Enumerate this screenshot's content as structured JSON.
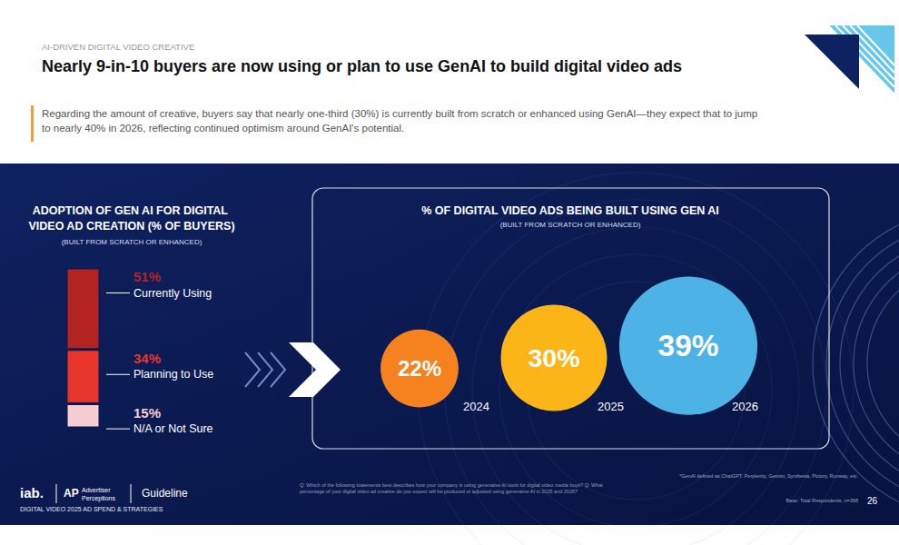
{
  "header": {
    "kicker": "AI-DRIVEN DIGITAL VIDEO CREATIVE",
    "title": "Nearly 9-in-10 buyers are now using or plan to use GenAI to build digital video ads",
    "subtitle": "Regarding the amount of creative, buyers say that nearly one-third (30%) is currently built from scratch or enhanced using GenAI—they expect that to jump to nearly 40% in 2026, reflecting continued optimism around GenAI's potential."
  },
  "chart_data": [
    {
      "type": "bar",
      "stacked": true,
      "title": "ADOPTION OF GEN AI FOR DIGITAL VIDEO AD CREATION (% OF BUYERS)",
      "subtitle": "(BUILT FROM SCRATCH OR ENHANCED)",
      "categories": [
        null
      ],
      "series": [
        {
          "name": "Currently Using",
          "color": "#b3231f",
          "values": [
            51
          ],
          "value_labels": [
            "51%"
          ]
        },
        {
          "name": "Planning to Use",
          "color": "#e8352c",
          "values": [
            34
          ],
          "value_labels": [
            "34%"
          ]
        },
        {
          "name": "N/A or Not Sure",
          "color": "#f6cdd3",
          "values": [
            15
          ],
          "value_labels": [
            "15%"
          ]
        }
      ],
      "ylim": [
        0,
        100
      ],
      "data_labels": true,
      "tick_labels": false
    },
    {
      "type": "scatter",
      "title": "% OF DIGITAL VIDEO ADS BEING BUILT USING GEN AI",
      "subtitle": "(BUILT FROM SCRATCH OR ENHANCED)",
      "categories": [
        "2024",
        "2025",
        "2026"
      ],
      "values": [
        22,
        30,
        39
      ],
      "value_labels": [
        "22%",
        "30%",
        "39%"
      ],
      "colors": [
        "#f5821f",
        "#fbb517",
        "#4db3e6"
      ],
      "ylim": [
        0,
        100
      ],
      "data_labels": true,
      "tick_labels": "x"
    }
  ],
  "footer": {
    "logos": [
      "iab.",
      "AP",
      "Advertiser Perceptions",
      "Guideline"
    ],
    "report": "DIGITAL VIDEO 2025 AD SPEND & STRATEGIES",
    "page": 26,
    "questions": "Q: Which of the following statements best describes how your company is using generative AI tools for digital video media buys? Q: What percentage of your digital video ad creative do you expect will be produced or adjusted using generative AI in 2025 and 2026?",
    "notes": [
      "*GenAI defined as ChatGPT, Perplexity, Gemini, Synthesia, Pictory, Runway, etc.",
      "Base: Total Respondents, n=398"
    ]
  }
}
